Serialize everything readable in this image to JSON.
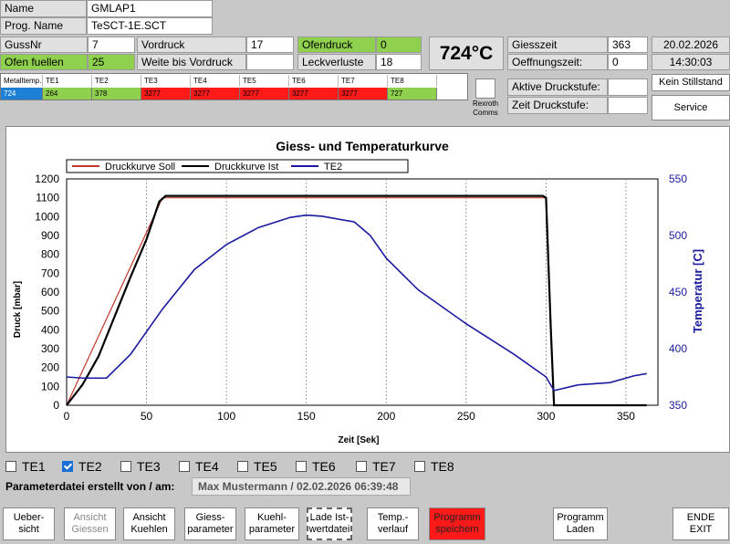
{
  "header": {
    "name_label": "Name",
    "name_value": "GMLAP1",
    "prog_label": "Prog. Name",
    "prog_value": "TeSCT-1E.SCT"
  },
  "params": {
    "gussnr_label": "GussNr",
    "gussnr_value": "7",
    "ofen_fuellen_label": "Ofen fuellen",
    "ofen_fuellen_value": "25",
    "vordruck_label": "Vordruck",
    "vordruck_value": "17",
    "weite_label": "Weite bis Vordruck",
    "weite_value": "",
    "ofendruck_label": "Ofendruck",
    "ofendruck_value": "0",
    "leckverluste_label": "Leckverluste",
    "leckverluste_value": "18",
    "temperature_display": "724°C",
    "giesszeit_label": "Giesszeit",
    "giesszeit_value": "363",
    "oeffnungszeit_label": "Oeffnungszeit:",
    "oeffnungszeit_value": "0",
    "date": "20.02.2026",
    "time": "14:30:03",
    "aktive_label": "Aktive Druckstufe:",
    "aktive_value": "",
    "zeit_druckstufe_label": "Zeit Druckstufe:",
    "zeit_druckstufe_value": "",
    "rexroth_label": "Rexroth\nComms",
    "kein_stillstand": "Kein Stillstand",
    "service": "Service"
  },
  "te_table": {
    "headers": [
      "Metalltemp.",
      "TE1",
      "TE2",
      "TE3",
      "TE4",
      "TE5",
      "TE6",
      "TE7",
      "TE8"
    ],
    "values": [
      "724",
      "264",
      "378",
      "3277",
      "3277",
      "3277",
      "3277",
      "3277",
      "727"
    ],
    "colors": [
      "blue",
      "green",
      "green",
      "red",
      "red",
      "red",
      "red",
      "red",
      "green"
    ]
  },
  "chart_data": {
    "type": "line",
    "title": "Giess- und Temperaturkurve",
    "xlabel": "Zeit [Sek]",
    "ylabel": "Druck [mbar]",
    "y2label": "Temperatur [C]",
    "xlim": [
      0,
      370
    ],
    "ylim": [
      0,
      1200
    ],
    "y2lim": [
      350,
      550
    ],
    "xticks": [
      0,
      50,
      100,
      150,
      200,
      250,
      300,
      350
    ],
    "yticks": [
      0,
      100,
      200,
      300,
      400,
      500,
      600,
      700,
      800,
      900,
      1000,
      1100,
      1200
    ],
    "y2ticks": [
      350,
      400,
      450,
      500,
      550
    ],
    "grid": true,
    "legend_placement": "top-left",
    "series": [
      {
        "name": "Druckkurve Soll",
        "color": "#c0392b",
        "axis": "left",
        "x": [
          0,
          60,
          60,
          300,
          305,
          363
        ],
        "y": [
          0,
          1100,
          1100,
          1100,
          0,
          0
        ]
      },
      {
        "name": "Druckkurve Ist",
        "color": "#000000",
        "axis": "left",
        "x": [
          0,
          10,
          20,
          30,
          40,
          50,
          58,
          62,
          100,
          150,
          200,
          250,
          298,
          300,
          303,
          305,
          363
        ],
        "y": [
          0,
          110,
          260,
          470,
          680,
          880,
          1080,
          1110,
          1110,
          1110,
          1110,
          1110,
          1110,
          1100,
          400,
          0,
          0
        ]
      },
      {
        "name": "TE2",
        "color": "#1a1aa0",
        "axis": "right",
        "x": [
          0,
          10,
          20,
          25,
          40,
          60,
          80,
          100,
          120,
          140,
          150,
          160,
          180,
          190,
          200,
          220,
          250,
          280,
          300,
          305,
          320,
          340,
          355,
          363
        ],
        "y": [
          375,
          374,
          374,
          374,
          395,
          435,
          470,
          492,
          507,
          516,
          518,
          517,
          512,
          500,
          480,
          452,
          422,
          395,
          375,
          363,
          368,
          370,
          376,
          378
        ]
      }
    ]
  },
  "checkboxes": [
    {
      "label": "TE1",
      "checked": false
    },
    {
      "label": "TE2",
      "checked": true
    },
    {
      "label": "TE3",
      "checked": false
    },
    {
      "label": "TE4",
      "checked": false
    },
    {
      "label": "TE5",
      "checked": false
    },
    {
      "label": "TE6",
      "checked": false
    },
    {
      "label": "TE7",
      "checked": false
    },
    {
      "label": "TE8",
      "checked": false
    }
  ],
  "paramfile": {
    "label": "Parameterdatei erstellt von / am:",
    "value": "Max Mustermann / 02.02.2026 06:39:48"
  },
  "buttons": [
    {
      "label": "Ueber-\nsicht",
      "state": "normal"
    },
    {
      "label": "Ansicht\nGiessen",
      "state": "disabled"
    },
    {
      "label": "Ansicht\nKuehlen",
      "state": "normal"
    },
    {
      "label": "Giess-\nparameter",
      "state": "normal"
    },
    {
      "label": "Kuehl-\nparameter",
      "state": "normal"
    },
    {
      "label": "Lade Ist-\nwertdatei",
      "state": "framed"
    },
    {
      "label": "Temp.-\nverlauf",
      "state": "normal"
    },
    {
      "label": "Programm\nspeichern",
      "state": "red"
    },
    {
      "label": "Programm\nLaden",
      "state": "normal"
    },
    {
      "label": "ENDE\nEXIT",
      "state": "normal"
    }
  ]
}
